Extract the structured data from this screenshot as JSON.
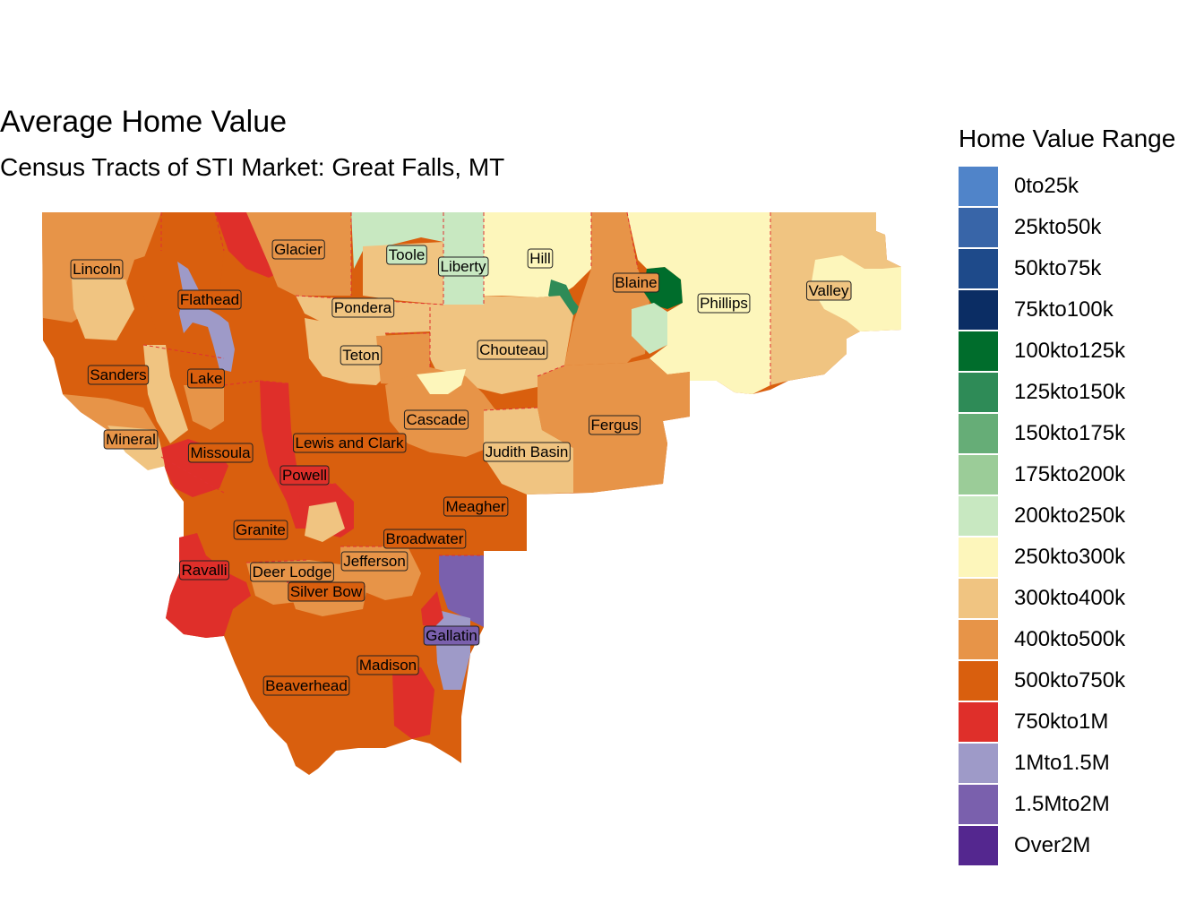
{
  "title": "Average Home Value",
  "subtitle": "Census Tracts of STI Market: Great Falls, MT",
  "legend": {
    "title": "Home Value Range",
    "items": [
      {
        "label": "0to25k",
        "color": "#5084c9"
      },
      {
        "label": "25kto50k",
        "color": "#3865a8"
      },
      {
        "label": "50kto75k",
        "color": "#1e4a8a"
      },
      {
        "label": "75kto100k",
        "color": "#0b2d64"
      },
      {
        "label": "100kto125k",
        "color": "#006d2c"
      },
      {
        "label": "125kto150k",
        "color": "#2e8b57"
      },
      {
        "label": "150kto175k",
        "color": "#66ad77"
      },
      {
        "label": "175kto200k",
        "color": "#9bcc98"
      },
      {
        "label": "200kto250k",
        "color": "#c8e8c1"
      },
      {
        "label": "250kto300k",
        "color": "#fdf6bb"
      },
      {
        "label": "300kto400k",
        "color": "#f0c481"
      },
      {
        "label": "400kto500k",
        "color": "#e79448"
      },
      {
        "label": "500kto750k",
        "color": "#d95f0e"
      },
      {
        "label": "750kto1M",
        "color": "#df2f2a"
      },
      {
        "label": "1Mto1.5M",
        "color": "#9e9ac8"
      },
      {
        "label": "1.5Mto2M",
        "color": "#7a60ad"
      },
      {
        "label": "Over2M",
        "color": "#54278f"
      }
    ]
  },
  "counties": [
    {
      "name": "Lincoln",
      "range": "400kto500k"
    },
    {
      "name": "Flathead",
      "range": "500kto750k"
    },
    {
      "name": "Glacier",
      "range": "400kto500k"
    },
    {
      "name": "Toole",
      "range": "200kto250k"
    },
    {
      "name": "Liberty",
      "range": "200kto250k"
    },
    {
      "name": "Hill",
      "range": "250kto300k"
    },
    {
      "name": "Blaine",
      "range": "400kto500k"
    },
    {
      "name": "Phillips",
      "range": "250kto300k"
    },
    {
      "name": "Valley",
      "range": "300kto400k"
    },
    {
      "name": "Pondera",
      "range": "300kto400k"
    },
    {
      "name": "Teton",
      "range": "300kto400k"
    },
    {
      "name": "Chouteau",
      "range": "300kto400k"
    },
    {
      "name": "Sanders",
      "range": "500kto750k"
    },
    {
      "name": "Lake",
      "range": "500kto750k"
    },
    {
      "name": "Cascade",
      "range": "400kto500k"
    },
    {
      "name": "Fergus",
      "range": "400kto500k"
    },
    {
      "name": "Mineral",
      "range": "400kto500k"
    },
    {
      "name": "Missoula",
      "range": "500kto750k"
    },
    {
      "name": "Lewis and Clark",
      "range": "500kto750k"
    },
    {
      "name": "Judith Basin",
      "range": "300kto400k"
    },
    {
      "name": "Powell",
      "range": "750kto1M"
    },
    {
      "name": "Meagher",
      "range": "500kto750k"
    },
    {
      "name": "Granite",
      "range": "500kto750k"
    },
    {
      "name": "Broadwater",
      "range": "500kto750k"
    },
    {
      "name": "Ravalli",
      "range": "750kto1M"
    },
    {
      "name": "Deer Lodge",
      "range": "400kto500k"
    },
    {
      "name": "Jefferson",
      "range": "400kto500k"
    },
    {
      "name": "Silver Bow",
      "range": "500kto750k"
    },
    {
      "name": "Gallatin",
      "range": "1.5Mto2M"
    },
    {
      "name": "Madison",
      "range": "500kto750k"
    },
    {
      "name": "Beaverhead",
      "range": "500kto750k"
    }
  ]
}
